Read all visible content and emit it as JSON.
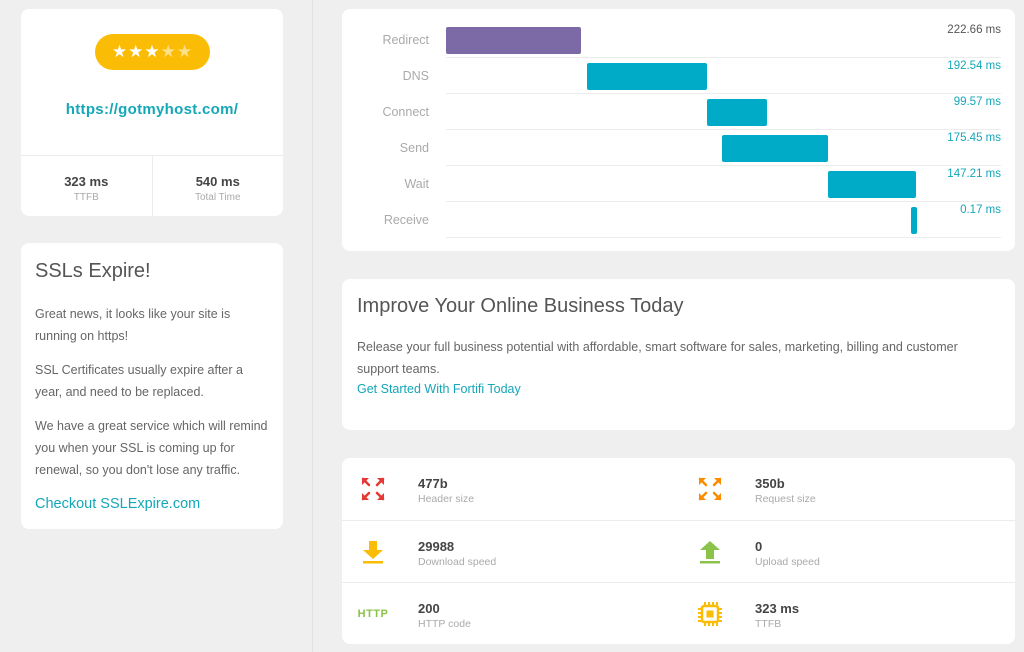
{
  "site": {
    "rating": 3,
    "rating_max": 5,
    "url": "https://gotmyhost.com/",
    "stats": [
      {
        "value": "323 ms",
        "label": "TTFB"
      },
      {
        "value": "540 ms",
        "label": "Total Time"
      }
    ]
  },
  "ssl": {
    "title": "SSLs Expire!",
    "paragraphs": [
      "Great news, it looks like your site is running on https!",
      "SSL Certificates usually expire after a year, and need to be replaced.",
      "We have a great service which will remind you when your SSL is coming up for renewal, so you don't lose any traffic."
    ],
    "link": "Checkout SSLExpire.com"
  },
  "waterfall": {
    "total_ms": 540,
    "rows": [
      {
        "label": "Redirect",
        "time": "222.66 ms",
        "start_ms": 0,
        "duration_ms": 117,
        "color": "#7b6aa6"
      },
      {
        "label": "DNS",
        "time": "192.54 ms",
        "start_ms": 122,
        "duration_ms": 104,
        "color": "#00abc8"
      },
      {
        "label": "Connect",
        "time": "99.57 ms",
        "start_ms": 226,
        "duration_ms": 52,
        "color": "#00abc8"
      },
      {
        "label": "Send",
        "time": "175.45 ms",
        "start_ms": 239,
        "duration_ms": 92,
        "color": "#00abc8"
      },
      {
        "label": "Wait",
        "time": "147.21 ms",
        "start_ms": 331,
        "duration_ms": 76,
        "color": "#00abc8"
      },
      {
        "label": "Receive",
        "time": "0.17 ms",
        "start_ms": 403,
        "duration_ms": 5,
        "color": "#00abc8"
      }
    ]
  },
  "promo": {
    "title": "Improve Your Online Business Today",
    "text": "Release your full business potential with affordable, smart software for sales, marketing, billing and customer support teams.",
    "link": "Get Started With Fortifi Today"
  },
  "metrics": [
    [
      {
        "value": "477b",
        "label": "Header size",
        "icon": "expand-arrows-icon",
        "color": "#e53935"
      },
      {
        "value": "350b",
        "label": "Request size",
        "icon": "expand-arrows-icon",
        "color": "#fb8c00"
      }
    ],
    [
      {
        "value": "29988",
        "label": "Download speed",
        "icon": "download-arrow-icon",
        "color": "#fbbc05"
      },
      {
        "value": "0",
        "label": "Upload speed",
        "icon": "upload-arrow-icon",
        "color": "#8bc34a"
      }
    ],
    [
      {
        "value": "200",
        "label": "HTTP code",
        "icon": "http-icon",
        "icon_text": "HTTP",
        "color": "#8bc34a"
      },
      {
        "value": "323 ms",
        "label": "TTFB",
        "icon": "cpu-chip-icon",
        "color": "#fbbc05"
      }
    ]
  ]
}
